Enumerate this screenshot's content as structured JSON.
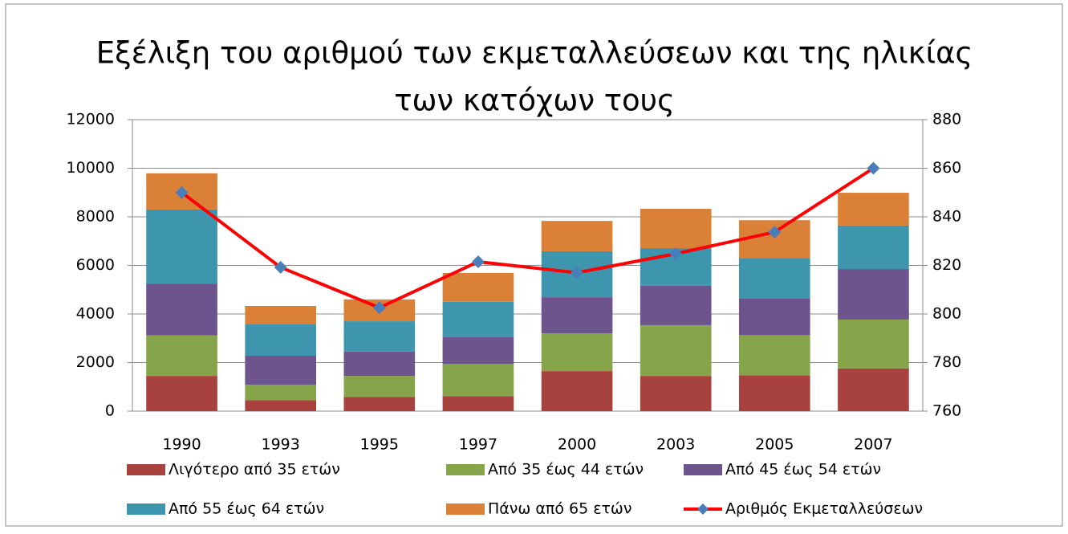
{
  "chart_data": {
    "type": "bar",
    "stacked": true,
    "title": "Εξέλιξη του αριθμού των εκμεταλλεύσεων και της ηλικίας των κατόχων τους",
    "categories": [
      "1990",
      "1993",
      "1995",
      "1997",
      "2000",
      "2003",
      "2005",
      "2007"
    ],
    "series": [
      {
        "name": "Λιγότερο από 35 ετών",
        "color": "#a8423f",
        "values": [
          1450,
          450,
          580,
          620,
          1650,
          1450,
          1480,
          1760
        ]
      },
      {
        "name": "Από 35 έως 44 ετών",
        "color": "#86a44a",
        "values": [
          1670,
          640,
          870,
          1330,
          1550,
          2090,
          1650,
          2010
        ]
      },
      {
        "name": "Από 45 έως 54 ετών",
        "color": "#6e548d",
        "values": [
          2120,
          1190,
          1000,
          1090,
          1490,
          1620,
          1520,
          2080
        ]
      },
      {
        "name": "Από 55 έως 64 ετών",
        "color": "#3d96ae",
        "values": [
          3060,
          1290,
          1250,
          1460,
          1890,
          1550,
          1650,
          1790
        ]
      },
      {
        "name": "Πάνω από 65 ετών",
        "color": "#da8137",
        "values": [
          1490,
          760,
          900,
          1190,
          1250,
          1620,
          1560,
          1350
        ]
      },
      {
        "name": "Αριθμός Εκμεταλλεύσεων",
        "type": "line",
        "axis": "y2",
        "color": "#ff0000",
        "marker_color": "#4a7ebb",
        "values": [
          850,
          819.2,
          802.6,
          821.5,
          817,
          824.8,
          833.7,
          860
        ]
      }
    ],
    "ylim": [
      0,
      12000
    ],
    "yticks": [
      0,
      2000,
      4000,
      6000,
      8000,
      10000,
      12000
    ],
    "y2lim": [
      760,
      880
    ],
    "y2ticks": [
      760,
      780,
      800,
      820,
      840,
      860,
      880
    ],
    "grid": true
  }
}
